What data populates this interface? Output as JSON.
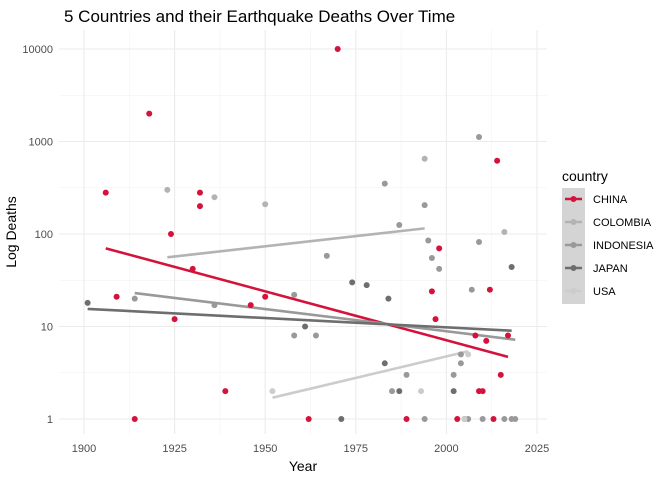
{
  "chart_data": {
    "type": "scatter",
    "title": "5 Countries and their Earthquake Deaths Over Time",
    "xlabel": "Year",
    "ylabel": "Log Deaths",
    "x_scale": "linear",
    "y_scale": "log10",
    "xlim": [
      1893,
      2027
    ],
    "ylim": [
      0.76,
      13000
    ],
    "x_ticks": [
      1900,
      1925,
      1950,
      1975,
      2000,
      2025
    ],
    "x_tick_labels": [
      "1900",
      "1925",
      "1950",
      "1975",
      "2000",
      "2025"
    ],
    "y_ticks": [
      1,
      10,
      100,
      1000,
      10000
    ],
    "y_tick_labels": [
      "1",
      "10",
      "100",
      "1000",
      "10000"
    ],
    "grid": true,
    "legend": {
      "title": "country",
      "position": "right"
    },
    "series": [
      {
        "name": "CHINA",
        "color": "#d4123c",
        "points": [
          [
            1906,
            280
          ],
          [
            1909,
            21
          ],
          [
            1914,
            1
          ],
          [
            1918,
            2000
          ],
          [
            1924,
            100
          ],
          [
            1925,
            12
          ],
          [
            1930,
            42
          ],
          [
            1932,
            280
          ],
          [
            1932,
            200
          ],
          [
            1939,
            2
          ],
          [
            1946,
            17
          ],
          [
            1950,
            21
          ],
          [
            1962,
            1
          ],
          [
            1970,
            10000
          ],
          [
            1989,
            1
          ],
          [
            1996,
            24
          ],
          [
            1997,
            12
          ],
          [
            1998,
            70
          ],
          [
            2003,
            1
          ],
          [
            2008,
            8
          ],
          [
            2009,
            2
          ],
          [
            2010,
            2
          ],
          [
            2011,
            7
          ],
          [
            2012,
            25
          ],
          [
            2013,
            1
          ],
          [
            2014,
            620
          ],
          [
            2015,
            3
          ],
          [
            2017,
            8
          ]
        ],
        "trend": [
          [
            1906,
            70
          ],
          [
            2017,
            4.7
          ]
        ]
      },
      {
        "name": "COLOMBIA",
        "color": "#b3b3b3",
        "points": [
          [
            1923,
            300
          ],
          [
            1936,
            250
          ],
          [
            1950,
            210
          ],
          [
            1994,
            650
          ],
          [
            2016,
            105
          ]
        ],
        "trend": [
          [
            1923,
            56
          ],
          [
            1994,
            115
          ]
        ]
      },
      {
        "name": "INDONESIA",
        "color": "#999999",
        "points": [
          [
            1914,
            20
          ],
          [
            1936,
            17
          ],
          [
            1958,
            8
          ],
          [
            1958,
            22
          ],
          [
            1964,
            8
          ],
          [
            1967,
            58
          ],
          [
            1983,
            350
          ],
          [
            1985,
            2
          ],
          [
            1987,
            125
          ],
          [
            1989,
            3
          ],
          [
            1994,
            1
          ],
          [
            1994,
            205
          ],
          [
            1995,
            85
          ],
          [
            1996,
            55
          ],
          [
            1998,
            42
          ],
          [
            2002,
            3
          ],
          [
            2004,
            4
          ],
          [
            2004,
            5
          ],
          [
            2006,
            1
          ],
          [
            2007,
            25
          ],
          [
            2009,
            1120
          ],
          [
            2009,
            82
          ],
          [
            2010,
            1
          ],
          [
            2016,
            1
          ],
          [
            2018,
            1
          ],
          [
            2019,
            1
          ]
        ],
        "trend": [
          [
            1914,
            23
          ],
          [
            2019,
            7.2
          ]
        ]
      },
      {
        "name": "JAPAN",
        "color": "#6e6e6e",
        "points": [
          [
            1901,
            18
          ],
          [
            1961,
            10
          ],
          [
            1971,
            1
          ],
          [
            1974,
            30
          ],
          [
            1978,
            28
          ],
          [
            1983,
            4
          ],
          [
            1984,
            20
          ],
          [
            1987,
            2
          ],
          [
            2002,
            2
          ],
          [
            2005,
            1
          ],
          [
            2018,
            44
          ]
        ],
        "trend": [
          [
            1901,
            15.5
          ],
          [
            2018,
            9
          ]
        ]
      },
      {
        "name": "USA",
        "color": "#cccccc",
        "points": [
          [
            1952,
            2
          ],
          [
            1993,
            2
          ],
          [
            2005,
            1
          ],
          [
            2006,
            5
          ]
        ],
        "trend": [
          [
            1952,
            1.7
          ],
          [
            2006,
            5.4
          ]
        ]
      }
    ]
  }
}
